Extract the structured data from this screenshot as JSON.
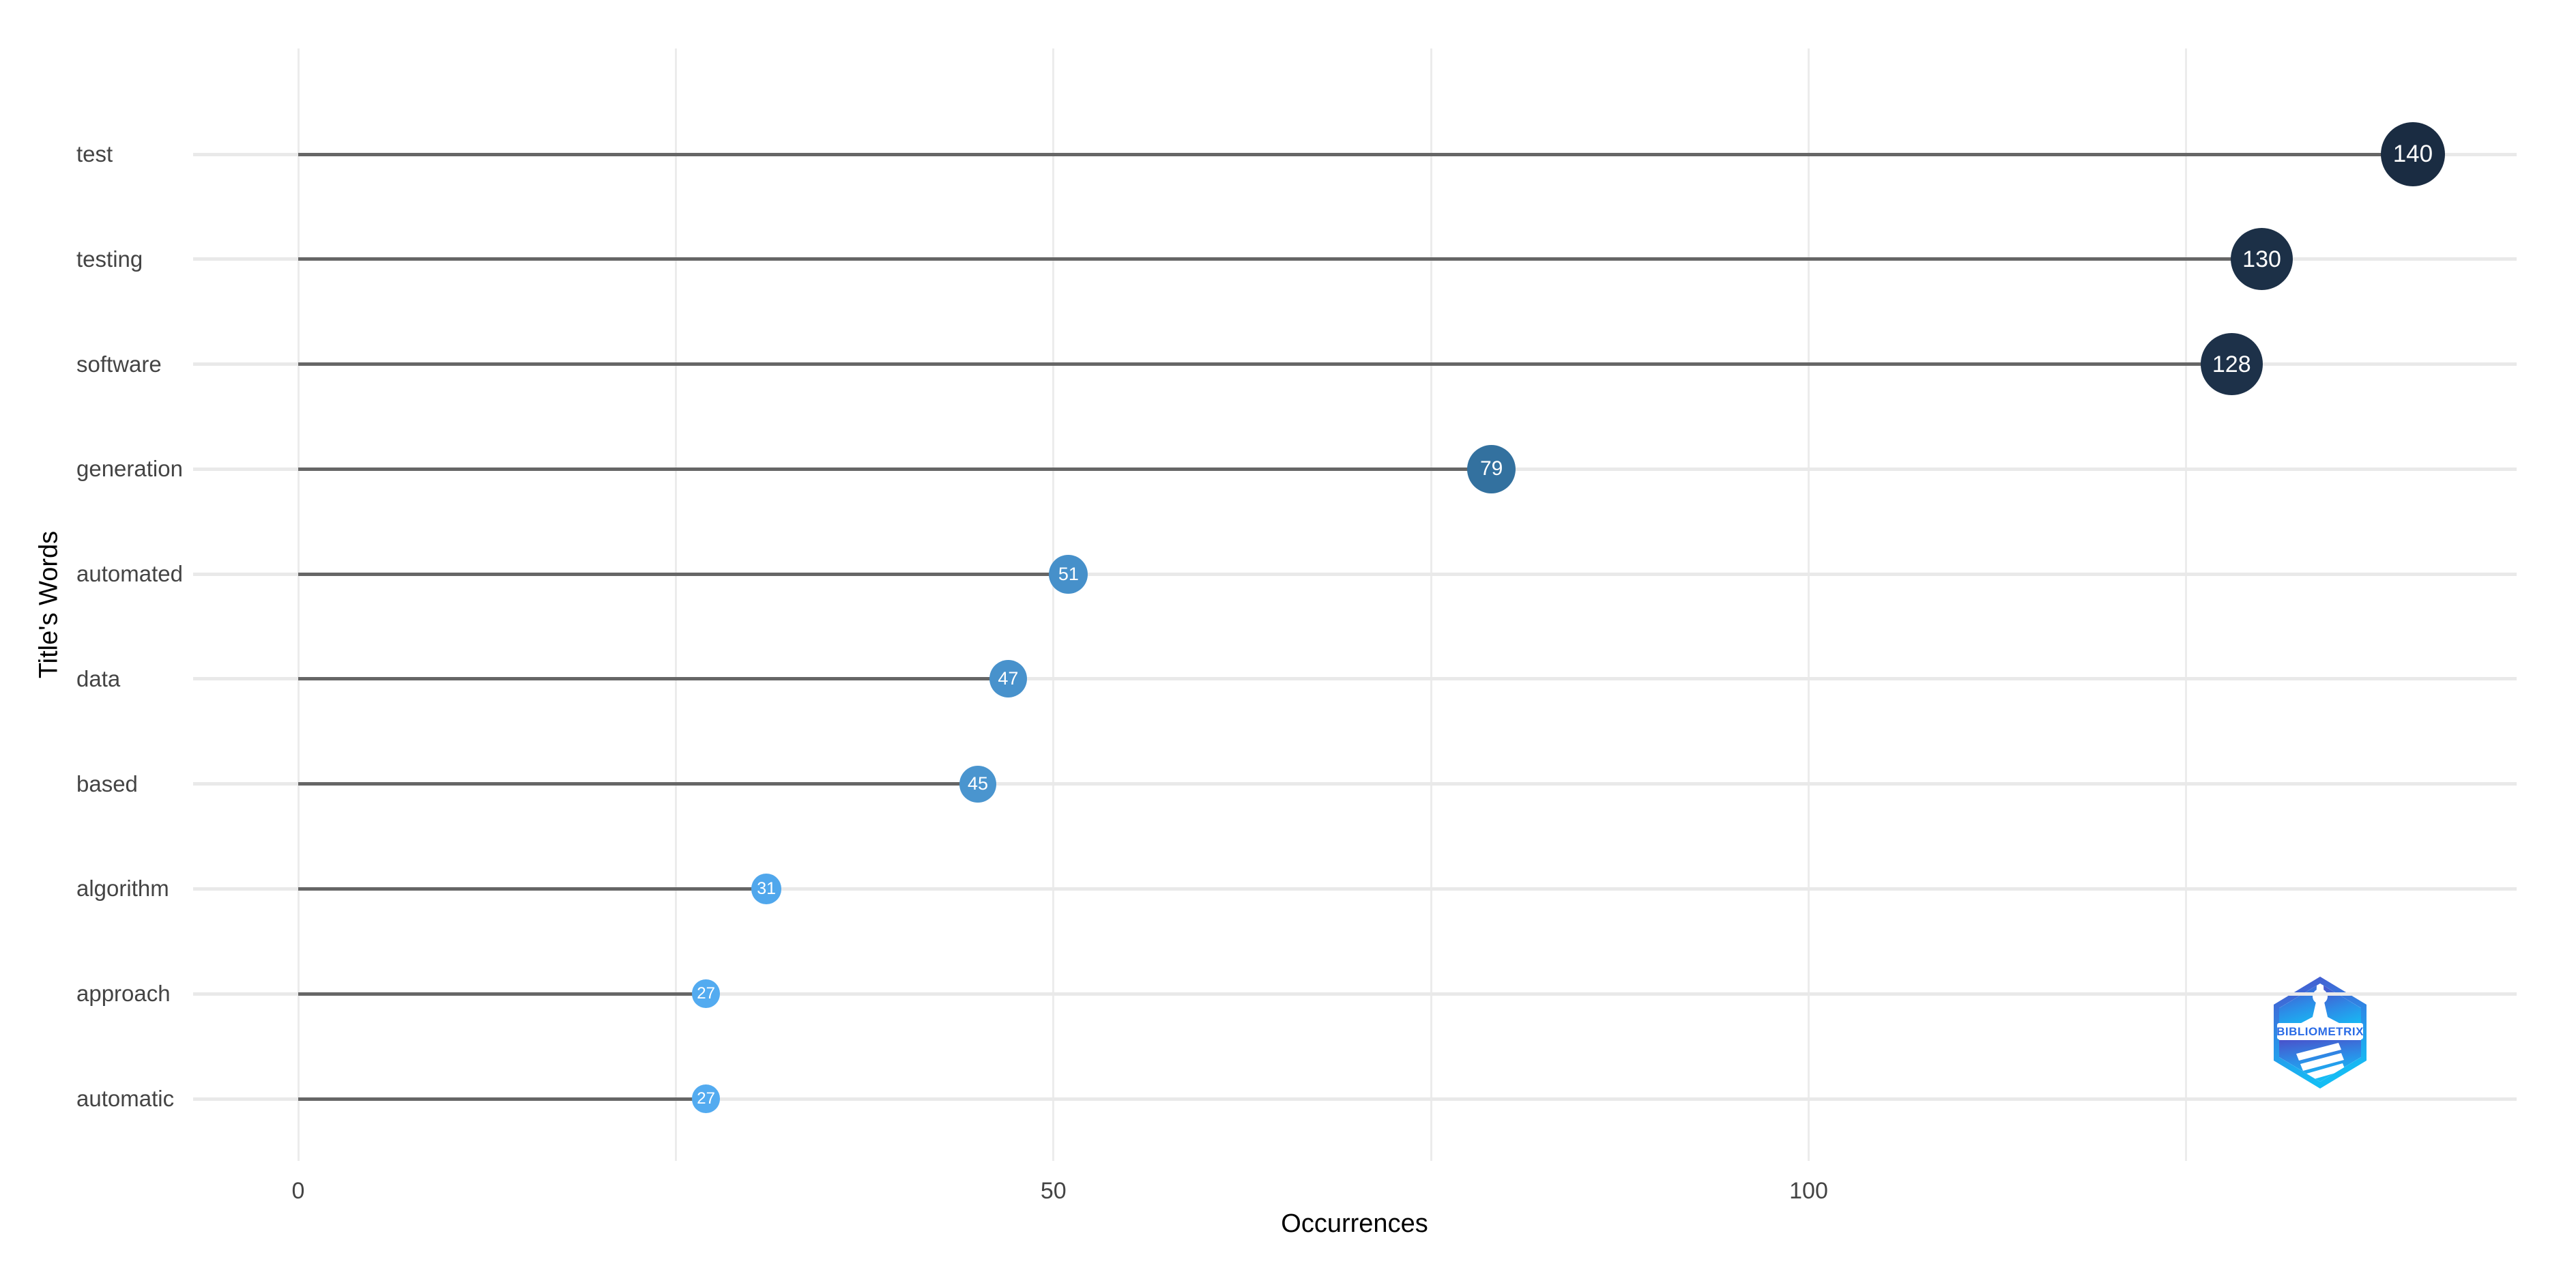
{
  "chart_data": {
    "type": "lollipop",
    "orientation": "horizontal",
    "title": "",
    "xlabel": "Occurrences",
    "ylabel": "Title's Words",
    "categories": [
      "test",
      "testing",
      "software",
      "generation",
      "automated",
      "data",
      "based",
      "algorithm",
      "approach",
      "automatic"
    ],
    "values": [
      140,
      130,
      128,
      79,
      51,
      47,
      45,
      31,
      27,
      27
    ],
    "point_colors": [
      "#1a2c42",
      "#1c3047",
      "#1d3149",
      "#33719f",
      "#4690ca",
      "#4892cc",
      "#4a95cf",
      "#50a7ec",
      "#53abf0",
      "#53abf0"
    ],
    "point_label_color": "#ffffff",
    "xlim": [
      -7,
      147
    ],
    "x_tick_labels": [
      0,
      50,
      100
    ],
    "x_gridlines": [
      0,
      25,
      50,
      75,
      100,
      125
    ],
    "grid": "vertical-and-row-lines",
    "legend": "none",
    "colors": {
      "background": "#ffffff",
      "stem": "#666666",
      "row_line": "#e9e9e9",
      "gridline": "#ececec",
      "tick_label": "#444444",
      "category_label": "#444444",
      "axis_title": "#000000"
    }
  },
  "logo": {
    "text": "BIBLIOMETRIX",
    "text_color": "#2b6ce6",
    "gradient_top": "#4a52cb",
    "gradient_bottom": "#15bdf4"
  }
}
